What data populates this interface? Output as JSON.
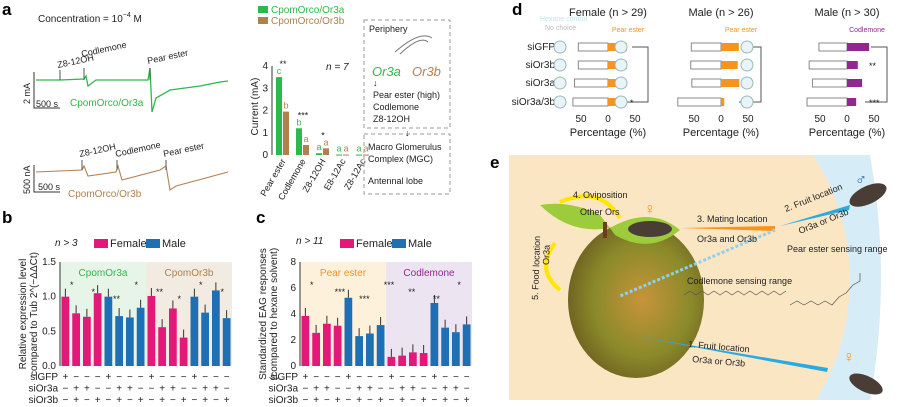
{
  "colors": {
    "or3a": "#2db84b",
    "or3b": "#b0814f",
    "female": "#e3197a",
    "male": "#1f6fb5",
    "pear": "#f7941d",
    "codlemone": "#92278f",
    "hexane": "#bfe3f5"
  },
  "panel_a": {
    "label": "a",
    "concentration": "Concentration = 10",
    "concentration_exp": "−4",
    "concentration_unit": " M",
    "trace_top": {
      "stimuli": [
        "Z8-12OH",
        "Codlemone",
        "Pear ester"
      ],
      "scale_y": "2 mA",
      "scale_x": "500 s",
      "name": "CpomOrco/Or3a"
    },
    "trace_bottom": {
      "stimuli": [
        "Z8-12OH",
        "Codlemone",
        "Pear ester"
      ],
      "scale_y": "500 nA",
      "scale_x": "500 s",
      "name": "CpomOrco/Or3b"
    },
    "n_label": "n = 7",
    "diagram": {
      "periphery": "Periphery",
      "or3a": "Or3a",
      "or3b": "Or3b",
      "ligands": [
        "Pear ester (high)",
        "Codlemone",
        "Z8-12OH"
      ],
      "mgc": [
        "Macro Glomerulus",
        "Complex (MGC)"
      ],
      "antennal_lobe": "Antennal lobe"
    }
  },
  "panel_b": {
    "label": "b",
    "n_label": "n > 3",
    "groups": [
      "CpomOr3a",
      "CpomOr3b"
    ]
  },
  "panel_c": {
    "label": "c",
    "n_label": "n > 11",
    "groups": [
      "Pear ester",
      "Codlemone"
    ]
  },
  "panel_d": {
    "label": "d",
    "legend_hexane": "Hexane control",
    "legend_nochoice": "No choice",
    "xlabel": "Percentage (%)"
  },
  "panel_e": {
    "label": "e",
    "steps": [
      "1. Fruit location",
      "2. Fruit location",
      "3. Mating location",
      "4. Oviposition",
      "5. Food location"
    ],
    "receptors": [
      "Or3a or Or3b",
      "Or3a or Or3b",
      "Or3a and Or3b",
      "Other Ors",
      "Or3a"
    ],
    "pear_range": "Pear ester sensing range",
    "codlemone_range": "Codlemone sensing range",
    "male_symbol": "♂",
    "female_symbol": "♀"
  },
  "chart_data": [
    {
      "id": "a",
      "type": "bar",
      "ylabel": "Current (mA)",
      "ylim": [
        0,
        4
      ],
      "yticks": [
        0,
        1,
        2,
        3,
        4
      ],
      "categories": [
        "Pear ester",
        "Codlemone",
        "Z8-12OH",
        "E8-12Ac",
        "Z8-12Ac"
      ],
      "series": [
        {
          "name": "CpomOrco/Or3a",
          "values": [
            3.5,
            1.2,
            0.08,
            0.02,
            0.02
          ],
          "letters": [
            "c",
            "b",
            "a",
            "a",
            "a"
          ]
        },
        {
          "name": "CpomOrco/Or3b",
          "values": [
            1.95,
            0.45,
            0.3,
            0.02,
            0.02
          ],
          "letters": [
            "b",
            "a",
            "a",
            "a",
            "a"
          ]
        }
      ],
      "significance": [
        "**",
        "***",
        "*"
      ]
    },
    {
      "id": "b",
      "type": "bar",
      "ylabel": "Relative expression level",
      "ylabel2": "compared to Tub 2^(−ΔΔCt)",
      "ylim": [
        0,
        1.5
      ],
      "yticks": [
        "0.0",
        "0.5",
        "1.0",
        "1.5"
      ],
      "legend": [
        "Female",
        "Male"
      ],
      "bars": [
        {
          "sex": "Female",
          "value": 1.0
        },
        {
          "sex": "Female",
          "value": 0.76
        },
        {
          "sex": "Female",
          "value": 0.71
        },
        {
          "sex": "Female",
          "value": 1.05
        },
        {
          "sex": "Male",
          "value": 1.0
        },
        {
          "sex": "Male",
          "value": 0.72
        },
        {
          "sex": "Male",
          "value": 0.7
        },
        {
          "sex": "Male",
          "value": 0.84
        },
        {
          "sex": "Female",
          "value": 1.01
        },
        {
          "sex": "Female",
          "value": 0.56
        },
        {
          "sex": "Female",
          "value": 0.83
        },
        {
          "sex": "Female",
          "value": 0.41
        },
        {
          "sex": "Male",
          "value": 1.0
        },
        {
          "sex": "Male",
          "value": 0.77
        },
        {
          "sex": "Male",
          "value": 1.09
        },
        {
          "sex": "Male",
          "value": 0.69
        }
      ],
      "treatments": [
        {
          "name": "siGFP",
          "signs": "+---+---+---+---"
        },
        {
          "name": "siOr3a",
          "signs": "-++--++--++--++-"
        },
        {
          "name": "siOr3b",
          "signs": "-+-+-+-+-+-+-+-+"
        }
      ],
      "significance": [
        "*",
        "*",
        "**",
        "*",
        "**",
        "*",
        "*",
        "*"
      ]
    },
    {
      "id": "c",
      "type": "bar",
      "ylabel": "Standardized EAG responses",
      "ylabel2": "(compared to hexane solvent)",
      "ylim": [
        0,
        8
      ],
      "yticks": [
        "0",
        "2",
        "4",
        "6",
        "8"
      ],
      "legend": [
        "Female",
        "Male"
      ],
      "bars": [
        {
          "sex": "Female",
          "value": 3.85
        },
        {
          "sex": "Female",
          "value": 2.55
        },
        {
          "sex": "Female",
          "value": 3.25
        },
        {
          "sex": "Female",
          "value": 3.1
        },
        {
          "sex": "Male",
          "value": 5.25
        },
        {
          "sex": "Male",
          "value": 2.3
        },
        {
          "sex": "Male",
          "value": 2.5
        },
        {
          "sex": "Male",
          "value": 3.15
        },
        {
          "sex": "Female",
          "value": 0.7
        },
        {
          "sex": "Female",
          "value": 0.8
        },
        {
          "sex": "Female",
          "value": 1.05
        },
        {
          "sex": "Female",
          "value": 1.0
        },
        {
          "sex": "Male",
          "value": 4.85
        },
        {
          "sex": "Male",
          "value": 2.95
        },
        {
          "sex": "Male",
          "value": 2.6
        },
        {
          "sex": "Male",
          "value": 3.2
        }
      ],
      "treatments": [
        {
          "name": "siGFP",
          "signs": "+---+---+---+---"
        },
        {
          "name": "siOr3a",
          "signs": "-++--++--++--++-"
        },
        {
          "name": "siOr3b",
          "signs": "-+-+-+-+-+-+-+-+"
        }
      ],
      "significance": [
        "*",
        "***",
        "***",
        "***",
        "**",
        "**",
        "*"
      ]
    },
    {
      "id": "d",
      "type": "bar",
      "orientation": "horizontal",
      "xlabel": "Percentage (%)",
      "xticks": [
        "50",
        "0",
        "50"
      ],
      "rows": [
        "siGFP",
        "siOr3b",
        "siOr3a",
        "siOr3a/3b"
      ],
      "groups": [
        {
          "title": "Female (n > 29)",
          "odor": "Pear ester",
          "hexane": [
            55,
            55,
            62,
            65
          ],
          "odor_values": [
            35,
            35,
            30,
            24
          ],
          "significance": [
            {
              "row": 3,
              "label": "*"
            }
          ]
        },
        {
          "title": "Male (n > 26)",
          "odor": "Pear ester",
          "hexane": [
            55,
            56,
            54,
            80
          ],
          "odor_values": [
            33,
            31,
            34,
            6
          ],
          "significance": [
            {
              "row": 3,
              "label": "***"
            }
          ]
        },
        {
          "title": "Male (n > 30)",
          "odor": "Codlemone",
          "hexane": [
            52,
            70,
            64,
            74
          ],
          "odor_values": [
            41,
            20,
            28,
            17
          ],
          "significance": [
            {
              "row": 1,
              "label": "**"
            },
            {
              "row": 3,
              "label": "***"
            }
          ]
        }
      ]
    }
  ]
}
